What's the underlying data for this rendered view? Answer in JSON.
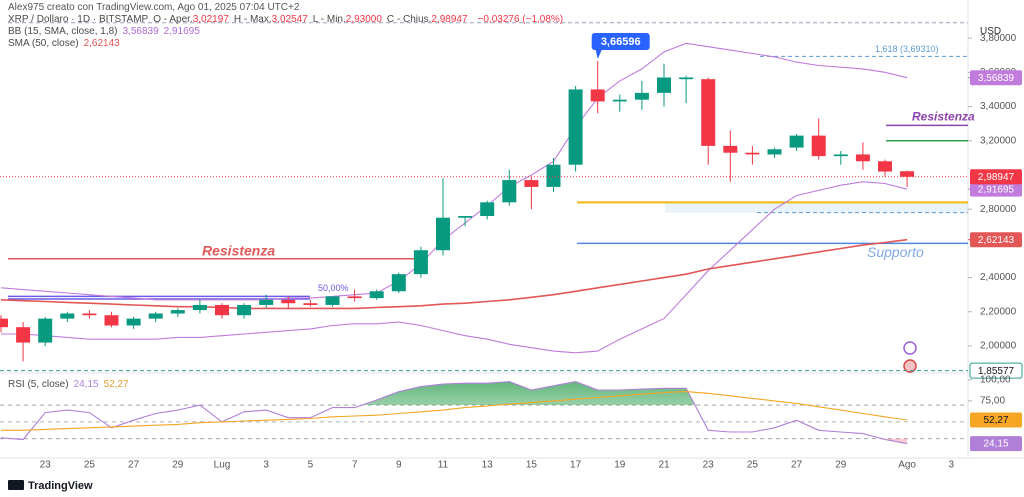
{
  "header": {
    "credit": "Alex975 creato con TradingView.com, Ago 01, 2025 07:04 UTC+2",
    "logo": "TradingView"
  },
  "chart_data": [
    {
      "type": "candlestick",
      "title": "XRP / Dollaro · 1D · BITSTAMP",
      "legend": {
        "ohlc": [
          {
            "label": "O - Aper.",
            "value": "3,02197"
          },
          {
            "label": "H - Max.",
            "value": "3,02547"
          },
          {
            "label": "L - Min.",
            "value": "2,93000"
          },
          {
            "label": "C - Chius.",
            "value": "2,98947"
          }
        ],
        "change": "−0,03276 (−1,08%)"
      },
      "y_unit": "USD",
      "categories": [
        null,
        null,
        "23",
        null,
        "25",
        null,
        "27",
        null,
        "29",
        null,
        "Lug",
        null,
        "3",
        null,
        "5",
        null,
        "7",
        null,
        "9",
        null,
        "11",
        null,
        "13",
        null,
        "15",
        null,
        "17",
        null,
        "19",
        null,
        "21",
        null,
        "23",
        null,
        "25",
        null,
        "27",
        null,
        "29",
        null,
        null,
        "Ago",
        null,
        "3"
      ],
      "open": [
        2.16,
        2.11,
        2.02,
        2.16,
        2.19,
        2.18,
        2.12,
        2.16,
        2.19,
        2.21,
        2.24,
        2.18,
        2.24,
        2.27,
        2.25,
        2.24,
        2.29,
        2.28,
        2.32,
        2.42,
        2.56,
        2.75,
        2.76,
        2.84,
        2.97,
        2.93,
        3.06,
        3.5,
        3.43,
        3.44,
        3.48,
        3.56,
        3.56,
        3.17,
        3.13,
        3.12,
        3.16,
        3.23,
        3.11,
        3.12,
        3.08,
        3.02197,
        null,
        null
      ],
      "high": [
        2.18,
        2.14,
        2.17,
        2.2,
        2.21,
        2.2,
        2.17,
        2.2,
        2.22,
        2.27,
        2.25,
        2.25,
        2.3,
        2.29,
        2.27,
        2.29,
        2.33,
        2.33,
        2.43,
        2.58,
        2.98,
        2.76,
        2.85,
        3.03,
        2.99,
        3.1,
        3.52,
        3.66596,
        3.47,
        3.55,
        3.65,
        3.58,
        3.57,
        3.26,
        3.17,
        3.16,
        3.24,
        3.33,
        3.14,
        3.19,
        3.09,
        3.02547,
        null,
        null
      ],
      "low": [
        2.08,
        1.91,
        2.0,
        2.14,
        2.16,
        2.11,
        2.1,
        2.14,
        2.17,
        2.19,
        2.16,
        2.16,
        2.22,
        2.22,
        2.23,
        2.23,
        2.26,
        2.27,
        2.31,
        2.4,
        2.53,
        2.7,
        2.74,
        2.82,
        2.8,
        2.9,
        3.02,
        3.36,
        3.37,
        3.38,
        3.4,
        3.42,
        3.06,
        2.96,
        3.06,
        3.1,
        3.14,
        3.09,
        3.06,
        3.03,
        2.99,
        2.93,
        null,
        null
      ],
      "close": [
        2.11,
        2.02,
        2.16,
        2.19,
        2.18,
        2.12,
        2.16,
        2.19,
        2.21,
        2.24,
        2.18,
        2.24,
        2.27,
        2.25,
        2.24,
        2.29,
        2.28,
        2.32,
        2.42,
        2.56,
        2.75,
        2.76,
        2.84,
        2.97,
        2.93,
        3.06,
        3.5,
        3.43,
        3.44,
        3.48,
        3.57,
        3.57,
        3.17,
        3.13,
        3.12,
        3.15,
        3.23,
        3.11,
        3.12,
        3.08,
        3.02,
        2.98947,
        null,
        null
      ],
      "up_color": "#089981",
      "down_color": "#f23645",
      "high_label": "3,66596",
      "overlays": [
        {
          "name": "BB (15, SMA, close, 1,8)",
          "color": "#c07bdc",
          "lines": [
            {
              "values": [
                2.34,
                2.33,
                2.32,
                2.31,
                2.3,
                2.29,
                2.28,
                2.27,
                2.27,
                2.27,
                2.27,
                2.27,
                2.27,
                2.28,
                2.28,
                2.29,
                2.3,
                2.31,
                2.38,
                2.48,
                2.62,
                2.72,
                2.82,
                2.93,
                3.0,
                3.08,
                3.28,
                3.45,
                3.55,
                3.62,
                3.72,
                3.77,
                3.75,
                3.73,
                3.71,
                3.69,
                3.66,
                3.64,
                3.63,
                3.62,
                3.6,
                3.56839,
                null,
                null
              ],
              "last_label": "3,56839"
            },
            {
              "values": [
                2.07,
                2.07,
                2.06,
                2.05,
                2.04,
                2.04,
                2.04,
                2.04,
                2.05,
                2.05,
                2.06,
                2.07,
                2.08,
                2.09,
                2.1,
                2.12,
                2.13,
                2.13,
                2.14,
                2.12,
                2.09,
                2.06,
                2.04,
                2.01,
                1.99,
                1.97,
                1.96,
                1.97,
                2.04,
                2.1,
                2.16,
                2.3,
                2.44,
                2.56,
                2.68,
                2.8,
                2.88,
                2.91,
                2.94,
                2.96,
                2.95,
                2.91695,
                null,
                null
              ],
              "last_label": "2,91695"
            }
          ]
        },
        {
          "name": "SMA (50, close)",
          "color": "#e25656",
          "lines": [
            {
              "values": [
                2.27,
                2.265,
                2.26,
                2.255,
                2.25,
                2.245,
                2.24,
                2.235,
                2.23,
                2.23,
                2.225,
                2.22,
                2.22,
                2.22,
                2.22,
                2.22,
                2.22,
                2.225,
                2.23,
                2.235,
                2.245,
                2.25,
                2.26,
                2.27,
                2.285,
                2.3,
                2.32,
                2.34,
                2.36,
                2.38,
                2.4,
                2.42,
                2.45,
                2.47,
                2.49,
                2.51,
                2.53,
                2.55,
                2.57,
                2.59,
                2.605,
                2.62143,
                null,
                null
              ],
              "last_label": "2,62143"
            }
          ]
        }
      ],
      "levels": [
        {
          "value": 3.89,
          "color": "#9aa0b8"
        },
        {
          "value": 3.6931,
          "color": "#5b9bd5",
          "label": "1,618 (3,69310)"
        },
        {
          "value": 3.29,
          "color": "#8e44ad",
          "label": "Resistenza"
        },
        {
          "value": 3.2,
          "color": "#2e9e4f"
        },
        {
          "value": 2.84,
          "color": "#f0b90b"
        },
        {
          "value": 2.78,
          "color": "#5b9bd5"
        },
        {
          "value": 2.6,
          "color": "#4f86e0",
          "label": "Supporto"
        },
        {
          "value": 2.51,
          "color": "#e05a5a",
          "label": "Resistenza"
        },
        {
          "value": 2.29,
          "color": "#6c5ce7",
          "label": "50,00%"
        },
        {
          "value": 2.275,
          "color": "#6c5ce7"
        },
        {
          "value": 1.85577,
          "color": "#2e9e8f",
          "label": "1,85577"
        }
      ],
      "ylim": [
        1.848,
        3.906
      ],
      "yticks": [
        {
          "value": 2.0,
          "label": "2,00000"
        },
        {
          "value": 2.2,
          "label": "2,20000"
        },
        {
          "value": 2.4,
          "label": "2,40000"
        },
        {
          "value": 2.8,
          "label": "2,80000"
        },
        {
          "value": 3.2,
          "label": "3,20000"
        },
        {
          "value": 3.4,
          "label": "3,40000"
        },
        {
          "value": 3.6,
          "label": "3,60000"
        },
        {
          "value": 3.8,
          "label": "3,80000"
        }
      ]
    },
    {
      "type": "line",
      "title": "RSI (5, close)",
      "series": [
        {
          "color": "#b07fd8",
          "values": [
            31,
            29,
            61,
            64,
            61,
            43,
            52,
            60,
            64,
            70,
            50,
            62,
            64,
            55,
            55,
            67,
            67,
            76,
            86,
            92,
            95,
            96,
            96,
            98,
            88,
            93,
            98,
            88,
            88,
            89,
            90,
            90,
            40,
            38,
            38,
            43,
            52,
            40,
            38,
            36,
            29,
            24.15,
            null,
            null
          ],
          "last_label": "24,15"
        },
        {
          "color": "#f5a623",
          "values": [
            40,
            40,
            41,
            42,
            43,
            44,
            45,
            46,
            47,
            49,
            50,
            51,
            52,
            53,
            54,
            56,
            57,
            58,
            60,
            62,
            64,
            67,
            69,
            71,
            73,
            75,
            77,
            79,
            81,
            83,
            85,
            86,
            84,
            81,
            78,
            75,
            72,
            68,
            64,
            60,
            56,
            52.27,
            null,
            null
          ],
          "last_label": "52,27"
        }
      ],
      "bands": [
        70,
        50,
        30
      ],
      "ylim": [
        7,
        107
      ],
      "yticks": [
        {
          "value": 100,
          "label": "100,00"
        },
        {
          "value": 75,
          "label": "75,00"
        }
      ]
    }
  ]
}
